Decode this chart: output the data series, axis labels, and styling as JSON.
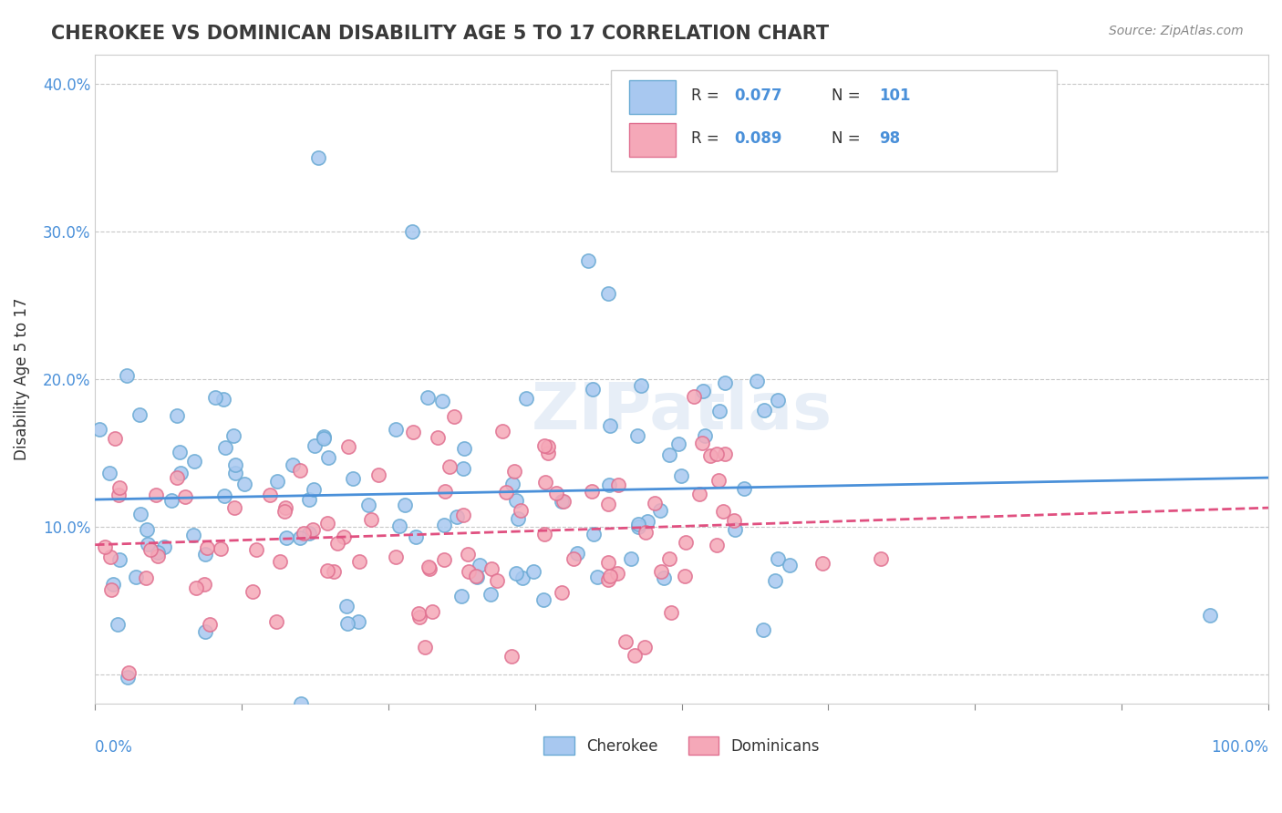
{
  "title": "CHEROKEE VS DOMINICAN DISABILITY AGE 5 TO 17 CORRELATION CHART",
  "source": "Source: ZipAtlas.com",
  "ylabel": "Disability Age 5 to 17",
  "xlim": [
    0,
    1.0
  ],
  "ylim": [
    -0.02,
    0.42
  ],
  "yticks": [
    0.0,
    0.1,
    0.2,
    0.3,
    0.4
  ],
  "ytick_labels": [
    "",
    "10.0%",
    "20.0%",
    "30.0%",
    "40.0%"
  ],
  "cherokee_color": "#a8c8f0",
  "cherokee_edge": "#6aaad4",
  "dominican_color": "#f5a8b8",
  "dominican_edge": "#e07090",
  "line_cherokee": "#4a90d9",
  "line_dominican": "#e05080",
  "R_cherokee": 0.077,
  "N_cherokee": 101,
  "R_dominican": 0.089,
  "N_dominican": 98,
  "watermark": "ZIPatlas",
  "background_color": "#ffffff",
  "grid_color": "#c8c8c8"
}
